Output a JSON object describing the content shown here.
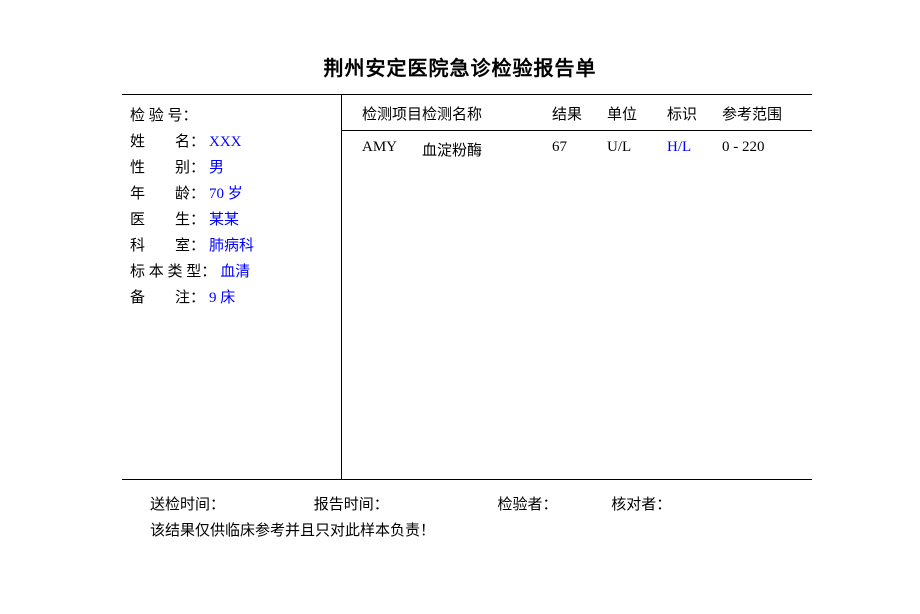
{
  "title": "荆州安定医院急诊检验报告单",
  "patient": {
    "test_no_label": "检 验 号：",
    "test_no": "",
    "name_label": "姓　　名：",
    "name": "XXX",
    "sex_label": "性　　别：",
    "sex": "男",
    "age_label": "年　　龄：",
    "age": "70 岁",
    "doctor_label": "医　　生：",
    "doctor": "某某",
    "dept_label": "科　　室：",
    "dept": "肺病科",
    "sample_label": "标 本 类 型：",
    "sample": "血清",
    "remark_label": "备　　注：",
    "remark": "9 床"
  },
  "table": {
    "headers": {
      "code": "检测项目",
      "name": "检测名称",
      "result": "结果",
      "unit": "单位",
      "flag": "标识",
      "ref": "参考范围"
    },
    "row": {
      "code": "AMY",
      "name": "血淀粉酶",
      "result": "67",
      "unit": "U/L",
      "flag": "H/L",
      "ref": "0 - 220"
    }
  },
  "footer": {
    "send_time": "送检时间：",
    "report_time": "报告时间：",
    "tester": "检验者：",
    "checker": "核对者：",
    "disclaimer": "该结果仅供临床参考并且只对此样本负责！"
  }
}
